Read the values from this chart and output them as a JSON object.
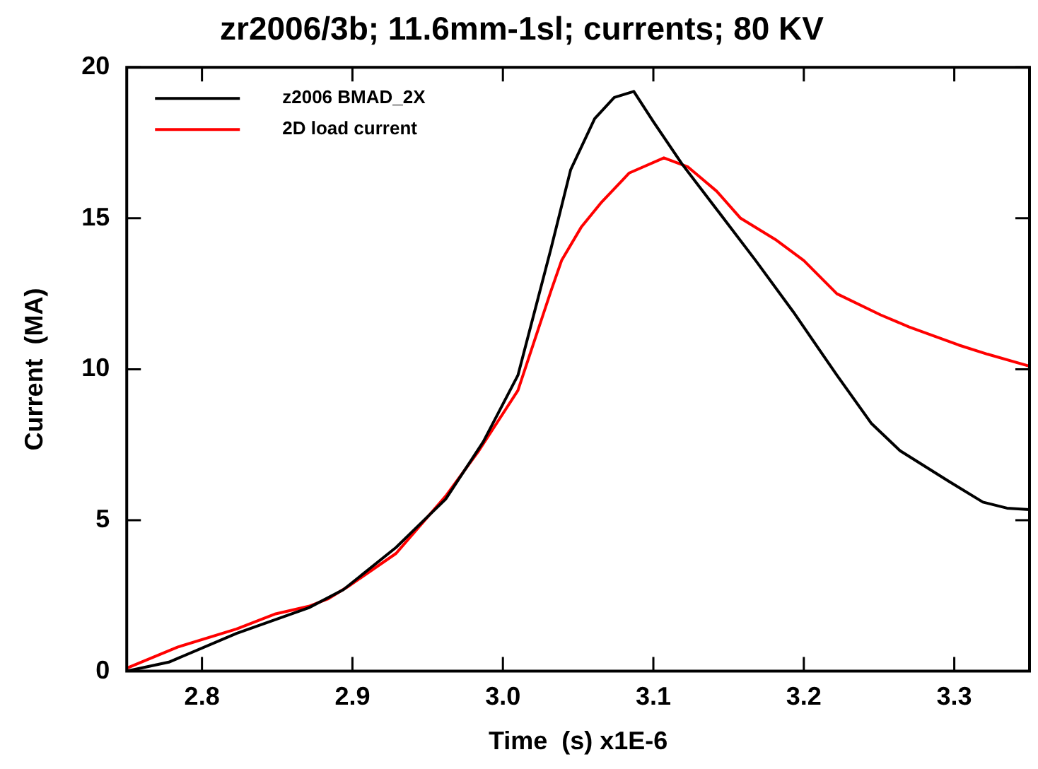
{
  "chart_data": {
    "type": "line",
    "title": "zr2006/3b; 11.6mm-1sl; currents; 80 KV",
    "xlabel": "Time  (s) x1E-6",
    "ylabel": "Current  (MA)",
    "xlim": [
      2.75,
      3.35
    ],
    "xticks": [
      2.8,
      2.9,
      {
        "value": 3,
        "label": "3.0"
      },
      3.1,
      3.2,
      3.3
    ],
    "ylim": [
      0,
      20
    ],
    "yticks": [
      0,
      5,
      10,
      15,
      20
    ],
    "grid": false,
    "legend": "top left",
    "marker": "none",
    "line_style": "solid",
    "series": [
      {
        "name": "z2006 BMAD_2X",
        "color": "#000000",
        "x": [
          2.75,
          2.778,
          2.823,
          2.871,
          2.894,
          2.929,
          2.962,
          2.987,
          3.01,
          3.032,
          3.045,
          3.061,
          3.074,
          3.087,
          3.1,
          3.119,
          3.142,
          3.168,
          3.193,
          3.222,
          3.245,
          3.264,
          3.296,
          3.319,
          3.335,
          3.35
        ],
        "values": [
          0,
          0.3,
          1.25,
          2.1,
          2.7,
          4.1,
          5.7,
          7.6,
          9.8,
          14.0,
          16.6,
          18.3,
          19.0,
          19.2,
          18.2,
          16.8,
          15.3,
          13.6,
          11.9,
          9.8,
          8.2,
          7.3,
          6.3,
          5.6,
          5.4,
          5.35
        ]
      },
      {
        "name": "2D load current",
        "color": "#ff0000",
        "x": [
          2.75,
          2.784,
          2.823,
          2.849,
          2.871,
          2.884,
          2.897,
          2.929,
          2.962,
          2.984,
          3.01,
          3.032,
          3.039,
          3.052,
          3.065,
          3.084,
          3.107,
          3.123,
          3.142,
          3.158,
          3.181,
          3.2,
          3.222,
          3.251,
          3.27,
          3.303,
          3.322,
          3.35
        ],
        "values": [
          0.1,
          0.8,
          1.4,
          1.9,
          2.15,
          2.4,
          2.8,
          3.9,
          5.8,
          7.3,
          9.3,
          12.6,
          13.6,
          14.7,
          15.5,
          16.5,
          17.0,
          16.7,
          15.9,
          15.0,
          14.3,
          13.6,
          12.5,
          11.8,
          11.4,
          10.8,
          10.5,
          10.1
        ]
      }
    ]
  }
}
